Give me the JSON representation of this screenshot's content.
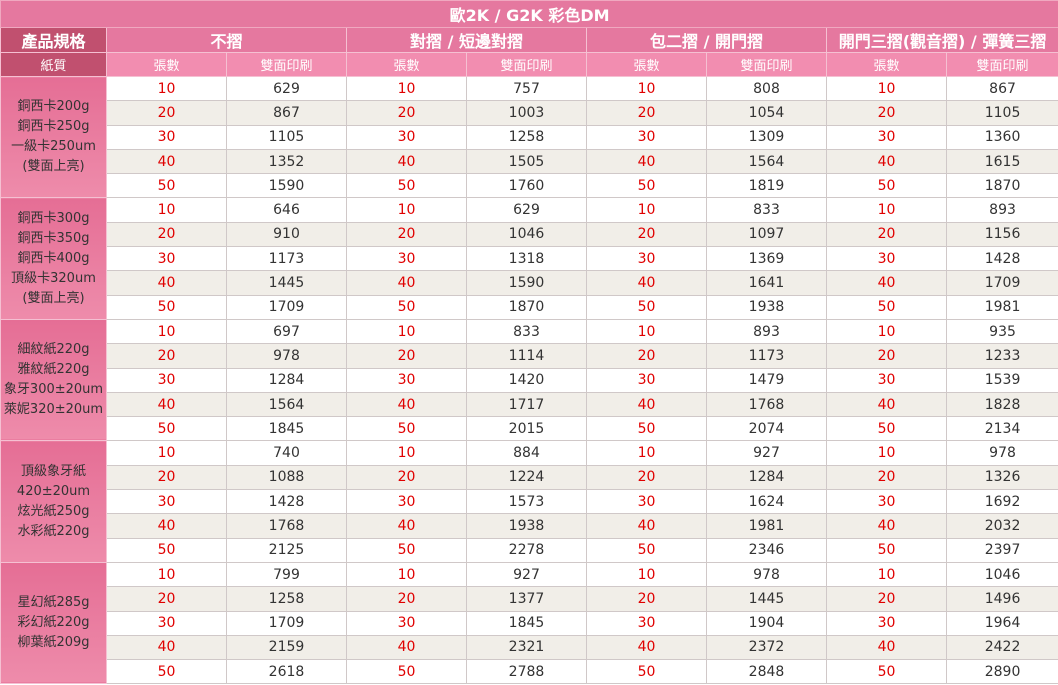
{
  "title": "歐2K / G2K 彩色DM",
  "header": {
    "label": "產品規格",
    "folds": [
      "不摺",
      "對摺 / 短邊對摺",
      "包二摺 / 開門摺",
      "開門三摺(觀音摺) / 彈簧三摺"
    ]
  },
  "subheader": {
    "label": "紙質",
    "columns": [
      "張數",
      "雙面印刷",
      "張數",
      "雙面印刷",
      "張數",
      "雙面印刷",
      "張數",
      "雙面印刷"
    ]
  },
  "groups": [
    {
      "paper": [
        "銅西卡200g",
        "銅西卡250g",
        "一級卡250um",
        "(雙面上亮)"
      ],
      "rows": [
        [
          10,
          629,
          10,
          757,
          10,
          808,
          10,
          867
        ],
        [
          20,
          867,
          20,
          1003,
          20,
          1054,
          20,
          1105
        ],
        [
          30,
          1105,
          30,
          1258,
          30,
          1309,
          30,
          1360
        ],
        [
          40,
          1352,
          40,
          1505,
          40,
          1564,
          40,
          1615
        ],
        [
          50,
          1590,
          50,
          1760,
          50,
          1819,
          50,
          1870
        ]
      ]
    },
    {
      "paper": [
        "銅西卡300g",
        "銅西卡350g",
        "銅西卡400g",
        "頂級卡320um",
        "(雙面上亮)"
      ],
      "rows": [
        [
          10,
          646,
          10,
          629,
          10,
          833,
          10,
          893
        ],
        [
          20,
          910,
          20,
          1046,
          20,
          1097,
          20,
          1156
        ],
        [
          30,
          1173,
          30,
          1318,
          30,
          1369,
          30,
          1428
        ],
        [
          40,
          1445,
          40,
          1590,
          40,
          1641,
          40,
          1709
        ],
        [
          50,
          1709,
          50,
          1870,
          50,
          1938,
          50,
          1981
        ]
      ]
    },
    {
      "paper": [
        "細紋紙220g",
        "雅紋紙220g",
        "象牙300±20um",
        "萊妮320±20um"
      ],
      "rows": [
        [
          10,
          697,
          10,
          833,
          10,
          893,
          10,
          935
        ],
        [
          20,
          978,
          20,
          1114,
          20,
          1173,
          20,
          1233
        ],
        [
          30,
          1284,
          30,
          1420,
          30,
          1479,
          30,
          1539
        ],
        [
          40,
          1564,
          40,
          1717,
          40,
          1768,
          40,
          1828
        ],
        [
          50,
          1845,
          50,
          2015,
          50,
          2074,
          50,
          2134
        ]
      ]
    },
    {
      "paper": [
        "頂級象牙紙",
        "420±20um",
        "炫光紙250g",
        "水彩紙220g"
      ],
      "rows": [
        [
          10,
          740,
          10,
          884,
          10,
          927,
          10,
          978
        ],
        [
          20,
          1088,
          20,
          1224,
          20,
          1284,
          20,
          1326
        ],
        [
          30,
          1428,
          30,
          1573,
          30,
          1624,
          30,
          1692
        ],
        [
          40,
          1768,
          40,
          1938,
          40,
          1981,
          40,
          2032
        ],
        [
          50,
          2125,
          50,
          2278,
          50,
          2346,
          50,
          2397
        ]
      ]
    },
    {
      "paper": [
        "星幻紙285g",
        "彩幻紙220g",
        "柳葉紙209g"
      ],
      "rows": [
        [
          10,
          799,
          10,
          927,
          10,
          978,
          10,
          1046
        ],
        [
          20,
          1258,
          20,
          1377,
          20,
          1445,
          20,
          1496
        ],
        [
          30,
          1709,
          30,
          1845,
          30,
          1904,
          30,
          1964
        ],
        [
          40,
          2159,
          40,
          2321,
          40,
          2372,
          40,
          2422
        ],
        [
          50,
          2618,
          50,
          2788,
          50,
          2848,
          50,
          2890
        ]
      ]
    }
  ]
}
